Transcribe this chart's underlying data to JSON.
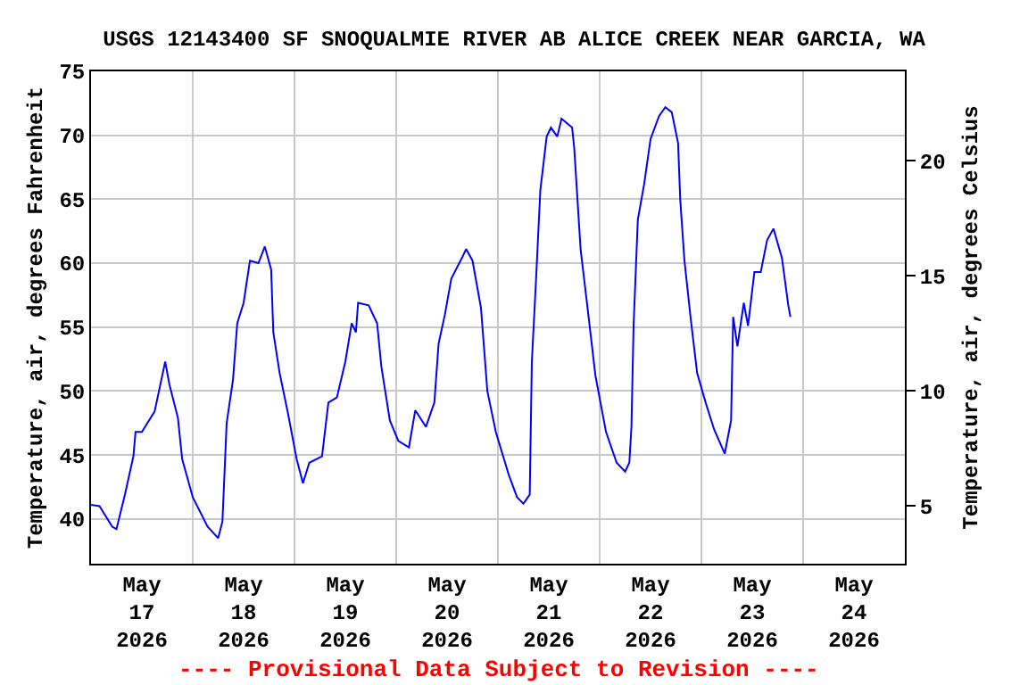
{
  "chart_data": {
    "type": "line",
    "title": "USGS 12143400 SF SNOQUALMIE RIVER AB ALICE CREEK NEAR GARCIA, WA",
    "ylabel": "Temperature, air, degrees Fahrenheit",
    "y2label": "Temperature, air, degrees Celsius",
    "annotations": [
      "---- Provisional Data Subject to Revision ----"
    ],
    "x": [
      "2026-05-17T00:00",
      "2026-05-17T02:00",
      "2026-05-17T05:00",
      "2026-05-17T06:00",
      "2026-05-17T08:00",
      "2026-05-17T10:00",
      "2026-05-17T10:30",
      "2026-05-17T12:00",
      "2026-05-17T15:00",
      "2026-05-17T17:30",
      "2026-05-17T18:30",
      "2026-05-17T20:30",
      "2026-05-17T21:30",
      "2026-05-18T00:00",
      "2026-05-18T03:30",
      "2026-05-18T06:00",
      "2026-05-18T07:00",
      "2026-05-18T08:00",
      "2026-05-18T09:30",
      "2026-05-18T10:30",
      "2026-05-18T12:00",
      "2026-05-18T13:30",
      "2026-05-18T15:30",
      "2026-05-18T17:00",
      "2026-05-18T18:30",
      "2026-05-18T19:00",
      "2026-05-18T20:30",
      "2026-05-18T22:30",
      "2026-05-19T00:30",
      "2026-05-19T02:00",
      "2026-05-19T03:30",
      "2026-05-19T06:30",
      "2026-05-19T08:00",
      "2026-05-19T10:00",
      "2026-05-19T12:00",
      "2026-05-19T13:30",
      "2026-05-19T14:30",
      "2026-05-19T15:00",
      "2026-05-19T17:30",
      "2026-05-19T19:30",
      "2026-05-19T20:30",
      "2026-05-19T22:30",
      "2026-05-20T00:30",
      "2026-05-20T03:00",
      "2026-05-20T04:30",
      "2026-05-20T07:00",
      "2026-05-20T09:00",
      "2026-05-20T10:00",
      "2026-05-20T11:30",
      "2026-05-20T13:00",
      "2026-05-20T15:30",
      "2026-05-20T16:30",
      "2026-05-20T18:00",
      "2026-05-20T20:00",
      "2026-05-20T21:30",
      "2026-05-20T23:30",
      "2026-05-21T02:30",
      "2026-05-21T04:30",
      "2026-05-21T06:00",
      "2026-05-21T07:30",
      "2026-05-21T08:00",
      "2026-05-21T09:00",
      "2026-05-21T10:00",
      "2026-05-21T11:30",
      "2026-05-21T12:30",
      "2026-05-21T14:00",
      "2026-05-21T15:00",
      "2026-05-21T17:30",
      "2026-05-21T18:00",
      "2026-05-21T19:30",
      "2026-05-21T21:00",
      "2026-05-21T23:00",
      "2026-05-22T01:30",
      "2026-05-22T04:00",
      "2026-05-22T06:00",
      "2026-05-22T07:00",
      "2026-05-22T07:30",
      "2026-05-22T08:00",
      "2026-05-22T09:00",
      "2026-05-22T10:30",
      "2026-05-22T12:00",
      "2026-05-22T14:00",
      "2026-05-22T15:30",
      "2026-05-22T17:00",
      "2026-05-22T18:30",
      "2026-05-22T19:00",
      "2026-05-22T20:00",
      "2026-05-22T21:30",
      "2026-05-22T23:00",
      "2026-05-23T01:00",
      "2026-05-23T03:00",
      "2026-05-23T05:30",
      "2026-05-23T07:00",
      "2026-05-23T07:30",
      "2026-05-23T08:30",
      "2026-05-23T10:00",
      "2026-05-23T11:00",
      "2026-05-23T12:30",
      "2026-05-23T14:00",
      "2026-05-23T15:30",
      "2026-05-23T17:00",
      "2026-05-23T19:00",
      "2026-05-23T20:30",
      "2026-05-23T21:00"
    ],
    "series": [
      {
        "color": "#0000ff",
        "values": [
          41.1,
          41,
          39.4,
          39.2,
          41.9,
          44.9,
          46.8,
          46.8,
          48.4,
          52.3,
          50.5,
          47.9,
          44.7,
          41.7,
          39.4,
          38.5,
          39.8,
          47.5,
          50.9,
          55.3,
          56.9,
          60.2,
          60,
          61.3,
          59.5,
          54.6,
          51.4,
          48.2,
          44.7,
          42.8,
          44.4,
          44.9,
          49.1,
          49.5,
          52.3,
          55.3,
          54.6,
          56.9,
          56.7,
          55.3,
          51.9,
          47.7,
          46.1,
          45.6,
          48.5,
          47.2,
          49.1,
          53.7,
          56,
          58.8,
          60.4,
          61.1,
          60.2,
          56.5,
          50,
          46.8,
          43.5,
          41.7,
          41.2,
          41.9,
          52.3,
          58.8,
          65.7,
          69.9,
          70.6,
          69.9,
          71.3,
          70.6,
          69,
          61.1,
          56.9,
          51.2,
          46.8,
          44.4,
          43.7,
          44.4,
          47.2,
          55.1,
          63.4,
          66.2,
          69.7,
          71.5,
          72.2,
          71.8,
          69.4,
          65,
          60.2,
          55.6,
          51.4,
          49.1,
          47,
          45.1,
          47.7,
          55.8,
          53.5,
          56.9,
          55.1,
          59.3,
          59.3,
          61.8,
          62.7,
          60.4,
          56.7,
          55.8
        ]
      }
    ],
    "xlim": [
      "2026-05-17T00:00",
      "2026-05-25T00:00"
    ],
    "xticks": [
      {
        "value": "2026-05-17T00:00",
        "label": null
      },
      {
        "value": "2026-05-17T12:00",
        "label": "May 17 2026"
      },
      {
        "value": "2026-05-18T00:00",
        "label": null
      },
      {
        "value": "2026-05-18T12:00",
        "label": "May 18 2026"
      },
      {
        "value": "2026-05-19T00:00",
        "label": null
      },
      {
        "value": "2026-05-19T12:00",
        "label": "May 19 2026"
      },
      {
        "value": "2026-05-20T00:00",
        "label": null
      },
      {
        "value": "2026-05-20T12:00",
        "label": "May 20 2026"
      },
      {
        "value": "2026-05-21T00:00",
        "label": null
      },
      {
        "value": "2026-05-21T12:00",
        "label": "May 21 2026"
      },
      {
        "value": "2026-05-22T00:00",
        "label": null
      },
      {
        "value": "2026-05-22T12:00",
        "label": "May 22 2026"
      },
      {
        "value": "2026-05-23T00:00",
        "label": null
      },
      {
        "value": "2026-05-23T12:00",
        "label": "May 23 2026"
      },
      {
        "value": "2026-05-24T00:00",
        "label": null
      },
      {
        "value": "2026-05-24T12:00",
        "label": "May 24 2026"
      },
      {
        "value": "2026-05-25T00:00",
        "label": null
      }
    ],
    "ylim": [
      36.5,
      75
    ],
    "yticks": [
      40,
      45,
      50,
      55,
      60,
      65,
      70,
      75
    ],
    "y2lim": [
      2.5,
      23.89
    ],
    "y2ticks": [
      5,
      10,
      15,
      20
    ],
    "grid": true,
    "marker": "none",
    "line_style": "solid"
  }
}
